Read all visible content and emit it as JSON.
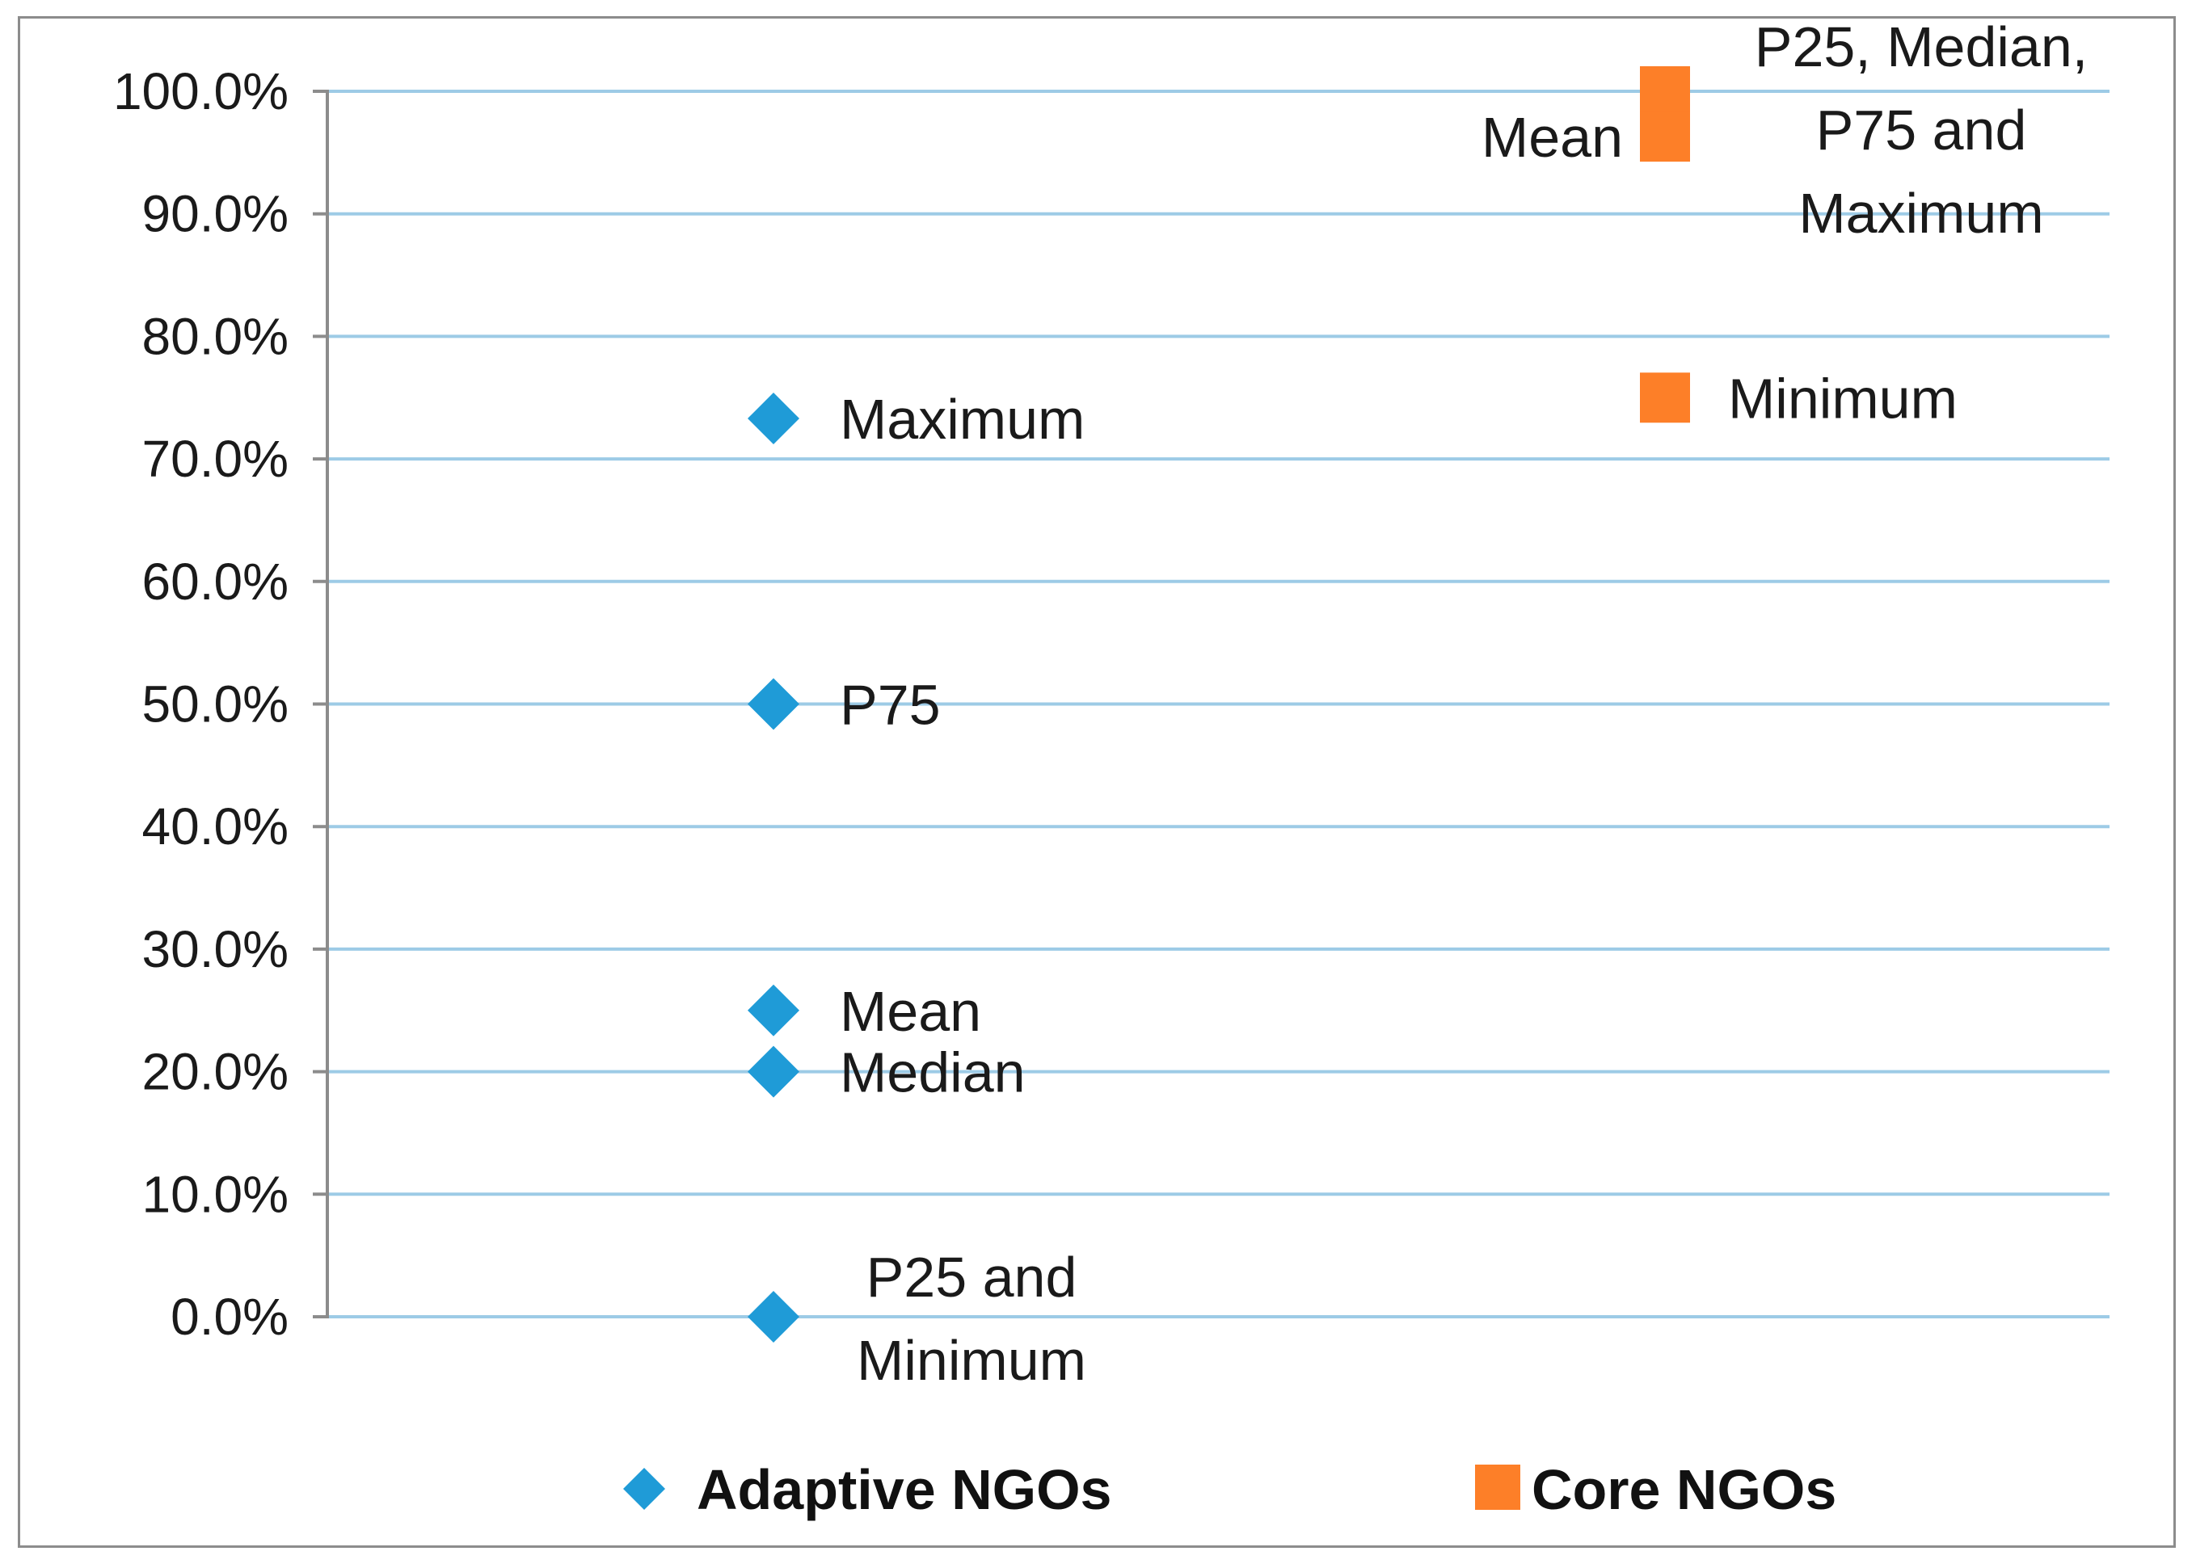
{
  "chart_data": {
    "type": "scatter",
    "title": "",
    "xlabel": "",
    "ylabel": "",
    "ylim": [
      0,
      100
    ],
    "y_ticks": [
      "0.0%",
      "10.0%",
      "20.0%",
      "30.0%",
      "40.0%",
      "50.0%",
      "60.0%",
      "70.0%",
      "80.0%",
      "90.0%",
      "100.0%"
    ],
    "grid": true,
    "legend_position": "bottom",
    "categories": [
      "Adaptive NGOs",
      "Core NGOs"
    ],
    "series": [
      {
        "name": "Adaptive NGOs",
        "marker": "diamond",
        "color": "#1f9bd7",
        "points": [
          {
            "stat": "Maximum",
            "value": 73.3,
            "label_lines": [
              "Maximum"
            ]
          },
          {
            "stat": "P75",
            "value": 50.0,
            "label_lines": [
              "P75"
            ]
          },
          {
            "stat": "Mean",
            "value": 25.0,
            "label_lines": [
              "Mean"
            ]
          },
          {
            "stat": "Median",
            "value": 20.0,
            "label_lines": [
              "Median"
            ]
          },
          {
            "stat": "P25 and Minimum",
            "value": 0.0,
            "label_lines": [
              "P25 and",
              "Minimum"
            ]
          }
        ]
      },
      {
        "name": "Core NGOs",
        "marker": "square",
        "color": "#fd7f28",
        "points": [
          {
            "stat": "P25, Median, P75 and Maximum",
            "value": 100.0,
            "label_lines": [
              "P25, Median,",
              "P75 and",
              "Maximum"
            ]
          },
          {
            "stat": "Mean",
            "value": 96.3,
            "label_lines": [
              "Mean"
            ]
          },
          {
            "stat": "Minimum",
            "value": 75.0,
            "label_lines": [
              "Minimum"
            ]
          }
        ]
      }
    ]
  },
  "colors": {
    "gridline": "#9dcbe6",
    "axis": "#8c8c8c",
    "frame": "#8c8c8c"
  }
}
